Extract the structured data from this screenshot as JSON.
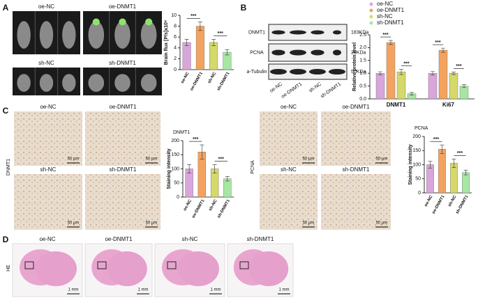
{
  "panels": {
    "A": {
      "letter": "A",
      "groups": [
        "oe-NC",
        "oe-DNMT1",
        "sh-NC",
        "sh-DNMT1"
      ]
    },
    "B": {
      "letter": "B",
      "proteins": [
        "DNMT1",
        "PCNA",
        "a-Tubulin"
      ],
      "sizes": [
        "183KDa",
        "29KDa",
        "50KDa"
      ],
      "lanes": [
        "oe-NC",
        "oe-DNMT1",
        "sh-NC",
        "sh-DNMT1"
      ]
    },
    "C": {
      "letter": "C",
      "left": {
        "stain": "DNMT1",
        "groups": [
          "oe-NC",
          "oe-DNMT1",
          "sh-NC",
          "sh-DNMT1"
        ],
        "scale": [
          "50 μm",
          "50 μm",
          "50 μm",
          "50 μm"
        ]
      },
      "right": {
        "stain": "PCNA",
        "groups": [
          "oe-NC",
          "oe-DNMT1",
          "sh-NC",
          "sh-DNMT1"
        ],
        "scale": [
          "50 μm",
          "50 μm",
          "50 μm",
          "50 μm"
        ]
      }
    },
    "D": {
      "letter": "D",
      "stain": "HE",
      "groups": [
        "oe-NC",
        "oe-DNMT1",
        "sh-NC",
        "sh-DNMT1"
      ],
      "scale": [
        "1 mm",
        "1 mm",
        "1 mm",
        "1 mm"
      ]
    }
  },
  "chart_data": [
    {
      "type": "bar",
      "ylabel": "Brain flux [P/s]x10⁸",
      "categories": [
        "oe-NC",
        "oe-DNMT1",
        "sh-NC",
        "sh-DNMT1"
      ],
      "values": [
        5.0,
        8.0,
        5.0,
        3.2
      ],
      "errors": [
        0.6,
        0.8,
        0.6,
        0.5
      ],
      "colors": [
        "#d9a6dc",
        "#f3a35f",
        "#d4d96a",
        "#a8e6a3"
      ],
      "ylim": [
        0,
        10
      ],
      "yticks": [
        0,
        2,
        4,
        6,
        8,
        10
      ],
      "annotations": [
        "***",
        "***"
      ]
    },
    {
      "type": "grouped-bar",
      "ylabel": "Relative protein level",
      "categories": [
        "DNMT1",
        "Ki67"
      ],
      "series": [
        {
          "name": "oe-NC",
          "color": "#d9a6dc",
          "values": [
            1.0,
            1.0
          ],
          "errors": [
            0.06,
            0.07
          ]
        },
        {
          "name": "oe-DNMT1",
          "color": "#f3a35f",
          "values": [
            2.2,
            1.9
          ],
          "errors": [
            0.08,
            0.08
          ]
        },
        {
          "name": "sh-NC",
          "color": "#d4d96a",
          "values": [
            1.05,
            1.0
          ],
          "errors": [
            0.1,
            0.05
          ]
        },
        {
          "name": "sh-DNMT1",
          "color": "#a8e6a3",
          "values": [
            0.2,
            0.5
          ],
          "errors": [
            0.05,
            0.06
          ]
        }
      ],
      "ylim": [
        0,
        2.5
      ],
      "yticks": [
        {
          "value": 0,
          "label": "0.0"
        },
        {
          "value": 0.5,
          "label": "0.5"
        },
        {
          "value": 1,
          "label": "1.0"
        },
        {
          "value": 1.5,
          "label": "1.5"
        },
        {
          "value": 2,
          "label": "2.0"
        },
        {
          "value": 2.5,
          "label": "2.5"
        }
      ],
      "annotations": [
        "***",
        "***",
        "***",
        "***"
      ]
    },
    {
      "type": "bar",
      "title": "DNMT1",
      "ylabel": "Staining intensity",
      "categories": [
        "oe-NC",
        "oe-DNMT1",
        "sh-NC",
        "sh-DNMT1"
      ],
      "values": [
        100,
        160,
        100,
        65
      ],
      "errors": [
        15,
        25,
        15,
        8
      ],
      "colors": [
        "#d9a6dc",
        "#f3a35f",
        "#d4d96a",
        "#a8e6a3"
      ],
      "ylim": [
        0,
        200
      ],
      "yticks": [
        0,
        50,
        100,
        150,
        200
      ],
      "annotations": [
        "***",
        "***"
      ]
    },
    {
      "type": "bar",
      "title": "PCNA",
      "ylabel": "Staining intensity",
      "categories": [
        "oe-NC",
        "oe-DNMT1",
        "sh-NC",
        "sh-DNMT1"
      ],
      "values": [
        100,
        155,
        105,
        72
      ],
      "errors": [
        12,
        15,
        15,
        8
      ],
      "colors": [
        "#d9a6dc",
        "#f3a35f",
        "#d4d96a",
        "#a8e6a3"
      ],
      "ylim": [
        0,
        200
      ],
      "yticks": [
        0,
        50,
        100,
        150,
        200
      ],
      "annotations": [
        "***",
        "***"
      ]
    }
  ]
}
